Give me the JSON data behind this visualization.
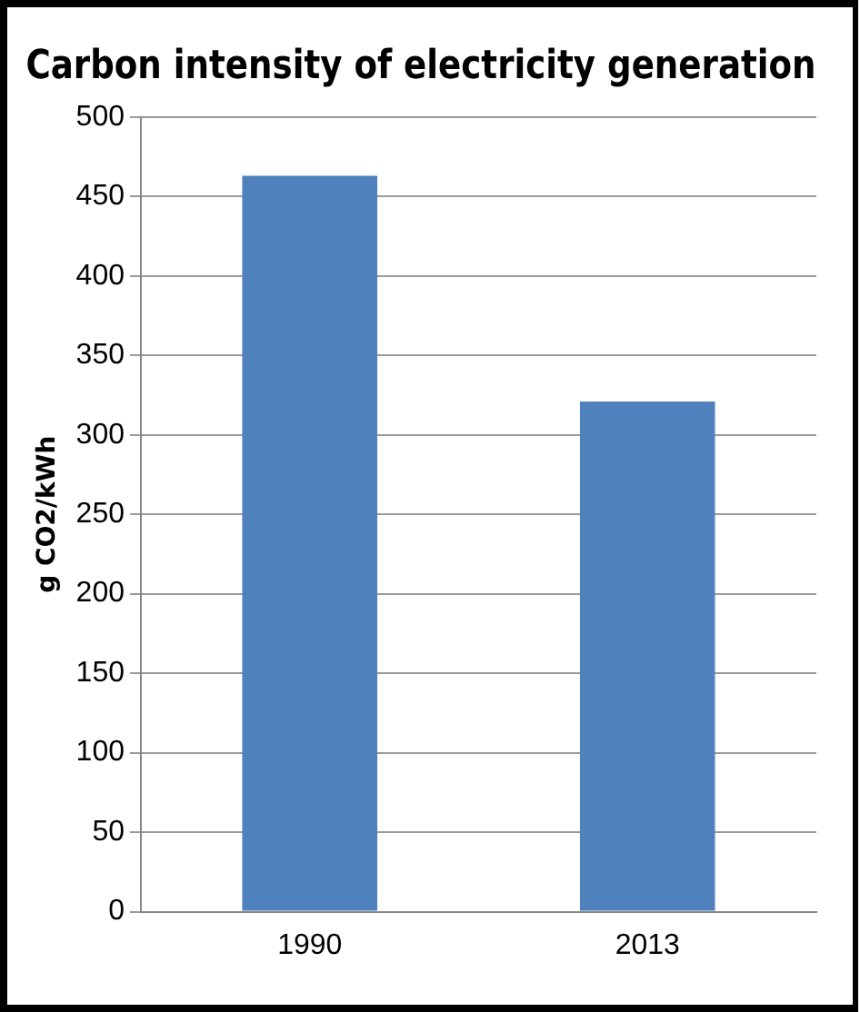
{
  "chart_data": {
    "type": "bar",
    "title": "Carbon intensity of electricity generation",
    "ylabel": "g CO2/kWh",
    "categories": [
      "1990",
      "2013"
    ],
    "values": [
      463,
      321
    ],
    "color": "#4f81bd",
    "ylim": [
      0,
      500
    ],
    "yticks": [
      0,
      50,
      100,
      150,
      200,
      250,
      300,
      350,
      400,
      450,
      500
    ],
    "grid": "y",
    "legend": false
  }
}
